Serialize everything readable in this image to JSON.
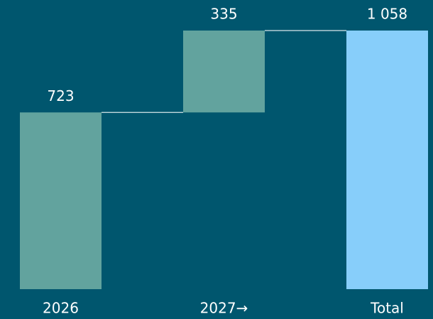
{
  "chart_data": {
    "type": "waterfall",
    "categories": [
      "2026",
      "2027→",
      "Total"
    ],
    "values": [
      723,
      335,
      1058
    ],
    "value_labels": [
      "723",
      "335",
      "1 058"
    ],
    "measures": [
      "relative",
      "relative",
      "total"
    ],
    "color": "#62a39e",
    "total_color": "#87cefa"
  }
}
